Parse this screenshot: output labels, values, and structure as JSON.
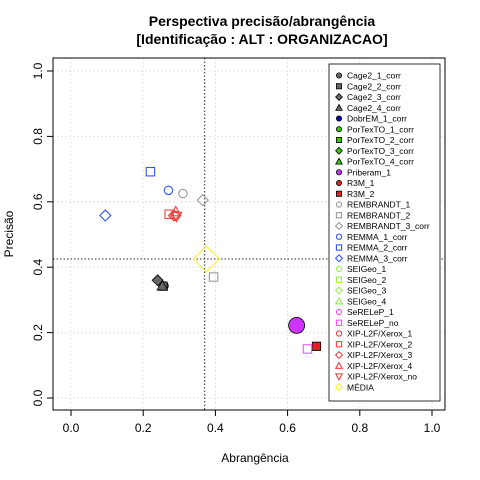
{
  "chart_data": {
    "type": "scatter",
    "title": "Perspectiva precisão/abrangência",
    "subtitle": "[Identificação : ALT : ORGANIZACAO]",
    "xlabel": "Abrangência",
    "ylabel": "Precisão",
    "xlim": [
      0,
      1
    ],
    "ylim": [
      0,
      1
    ],
    "xticks": [
      "0.0",
      "0.2",
      "0.4",
      "0.6",
      "0.8",
      "1.0"
    ],
    "yticks": [
      "0.0",
      "0.2",
      "0.4",
      "0.6",
      "0.8",
      "1.0"
    ],
    "grid": true,
    "legend_position": "right",
    "reference_lines": {
      "x": 0.37,
      "y": 0.425
    },
    "series": [
      {
        "name": "Cage2_1_corr",
        "symbol": "circle-filled",
        "color": "#666666",
        "x": 0.258,
        "y": 0.343
      },
      {
        "name": "Cage2_2_corr",
        "symbol": "square-filled",
        "color": "#666666",
        "x": 0.255,
        "y": 0.342
      },
      {
        "name": "Cage2_3_corr",
        "symbol": "diamond-filled",
        "color": "#666666",
        "x": 0.24,
        "y": 0.36
      },
      {
        "name": "Cage2_4_corr",
        "symbol": "triangle-filled",
        "color": "#666666",
        "x": 0.253,
        "y": 0.343
      },
      {
        "name": "DobrEM_1_corr",
        "symbol": "circle-filled",
        "color": "#0000cc",
        "x": null,
        "y": null
      },
      {
        "name": "PorTexTO_1_corr",
        "symbol": "circle-filled",
        "color": "#33cc00",
        "x": null,
        "y": null
      },
      {
        "name": "PorTexTO_2_corr",
        "symbol": "square-filled",
        "color": "#33cc00",
        "x": null,
        "y": null
      },
      {
        "name": "PorTexTO_3_corr",
        "symbol": "diamond-filled",
        "color": "#33cc00",
        "x": null,
        "y": null
      },
      {
        "name": "PorTexTO_4_corr",
        "symbol": "triangle-filled",
        "color": "#33cc00",
        "x": null,
        "y": null
      },
      {
        "name": "Priberam_1",
        "symbol": "circle-filled",
        "color": "#cc33ff",
        "x": 0.625,
        "y": 0.222
      },
      {
        "name": "R3M_1",
        "symbol": "circle-filled",
        "color": "#dd2222",
        "x": null,
        "y": null
      },
      {
        "name": "R3M_2",
        "symbol": "square-filled",
        "color": "#dd2222",
        "x": 0.68,
        "y": 0.158
      },
      {
        "name": "REMBRANDT_1",
        "symbol": "circle-open",
        "color": "#999999",
        "x": 0.31,
        "y": 0.625
      },
      {
        "name": "REMBRANDT_2",
        "symbol": "square-open",
        "color": "#999999",
        "x": 0.395,
        "y": 0.37
      },
      {
        "name": "REMBRANDT_3_corr",
        "symbol": "diamond-open",
        "color": "#999999",
        "x": 0.365,
        "y": 0.605
      },
      {
        "name": "REMMA_1_corr",
        "symbol": "circle-open",
        "color": "#3355ff",
        "x": 0.27,
        "y": 0.635
      },
      {
        "name": "REMMA_2_corr",
        "symbol": "square-open",
        "color": "#3355ff",
        "x": 0.22,
        "y": 0.692
      },
      {
        "name": "REMMA_3_corr",
        "symbol": "diamond-open",
        "color": "#3355ff",
        "x": 0.095,
        "y": 0.558
      },
      {
        "name": "SEIGeo_1",
        "symbol": "circle-open",
        "color": "#99ee55",
        "x": null,
        "y": null
      },
      {
        "name": "SEIGeo_2",
        "symbol": "square-open",
        "color": "#99ee55",
        "x": null,
        "y": null
      },
      {
        "name": "SEIGeo_3",
        "symbol": "diamond-open",
        "color": "#99ee55",
        "x": null,
        "y": null
      },
      {
        "name": "SEIGeo_4",
        "symbol": "triangle-open",
        "color": "#99ee55",
        "x": null,
        "y": null
      },
      {
        "name": "SeRELeP_1",
        "symbol": "circle-open",
        "color": "#ee55ee",
        "x": null,
        "y": null
      },
      {
        "name": "SeRELeP_no",
        "symbol": "square-open",
        "color": "#ee55ee",
        "x": 0.655,
        "y": 0.15
      },
      {
        "name": "XIP-L2F/Xerox_1",
        "symbol": "circle-open",
        "color": "#ee4444",
        "x": 0.29,
        "y": 0.558
      },
      {
        "name": "XIP-L2F/Xerox_2",
        "symbol": "square-open",
        "color": "#ee4444",
        "x": 0.272,
        "y": 0.562
      },
      {
        "name": "XIP-L2F/Xerox_3",
        "symbol": "diamond-open",
        "color": "#ee4444",
        "x": 0.285,
        "y": 0.558
      },
      {
        "name": "XIP-L2F/Xerox_4",
        "symbol": "triangle-open",
        "color": "#ee4444",
        "x": 0.29,
        "y": 0.57
      },
      {
        "name": "XIP-L2F/Xerox_no",
        "symbol": "triangledown-open",
        "color": "#ee4444",
        "x": 0.292,
        "y": 0.555
      },
      {
        "name": "MÉDIA",
        "symbol": "diamond-open",
        "color": "#ffee33",
        "x": 0.375,
        "y": 0.425
      }
    ]
  }
}
